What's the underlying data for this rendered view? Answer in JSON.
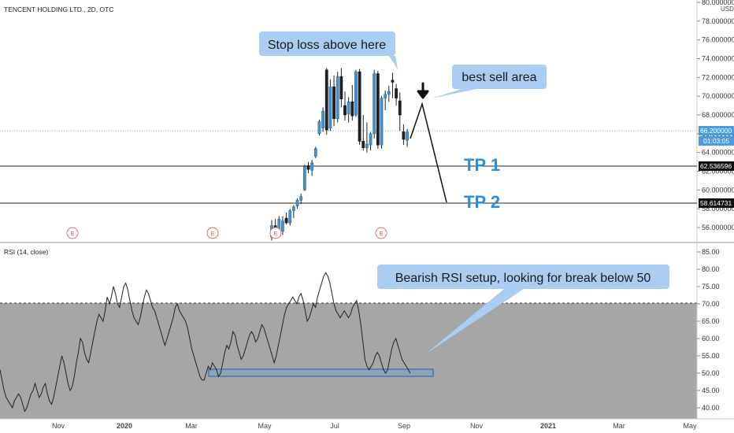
{
  "header": {
    "symbol_title": "TENCENT HOLDING LTD., 2D, OTC"
  },
  "price_axis": {
    "unit": "USD",
    "ticks": [
      "80.000000",
      "78.000000",
      "76.000000",
      "74.000000",
      "72.000000",
      "70.000000",
      "68.000000",
      "66.000000",
      "64.000000",
      "62.000000",
      "60.000000",
      "58.000000",
      "56.000000"
    ],
    "current_price_label": "66.200000",
    "countdown_label": "01:03:05",
    "level_tp1_label": "62.536596",
    "level_tp2_label": "58.614731"
  },
  "rsi_axis": {
    "ticks": [
      "85.00",
      "80.00",
      "75.00",
      "70.00",
      "65.00",
      "60.00",
      "55.00",
      "50.00",
      "45.00",
      "40.00"
    ]
  },
  "time_axis": {
    "ticks": [
      {
        "label": "Nov",
        "bold": false
      },
      {
        "label": "2020",
        "bold": true
      },
      {
        "label": "Mar",
        "bold": false
      },
      {
        "label": "May",
        "bold": false
      },
      {
        "label": "Jul",
        "bold": false
      },
      {
        "label": "Sep",
        "bold": false
      },
      {
        "label": "Nov",
        "bold": false
      },
      {
        "label": "2021",
        "bold": true
      },
      {
        "label": "Mar",
        "bold": false
      },
      {
        "label": "May",
        "bold": false
      }
    ]
  },
  "rsi_pane": {
    "title": "RSI (14, close)",
    "overbought": 70,
    "support_level": 50
  },
  "annotations": {
    "stop_loss": "Stop loss above here",
    "best_sell": "best sell area",
    "tp1": "TP 1",
    "tp2": "TP 2",
    "rsi_note": "Bearish RSI setup, looking for break below 50",
    "earnings_marker": "E"
  },
  "colors": {
    "bull": "#4a90c8",
    "bear": "#222222",
    "callout": "#a9cdf3",
    "tp_text": "#2a8fdb",
    "rsi_band": "#a6a6a6",
    "price_label_blue": "#4a9be0"
  },
  "chart_data": [
    {
      "type": "candlestick",
      "title": "TENCENT HOLDING LTD., 2D, OTC",
      "ylim": [
        54.5,
        80
      ],
      "levels": [
        62.536596,
        58.614731
      ],
      "current_price": 66.2,
      "candles": [
        [
          55.0,
          56.8,
          54.5,
          56.2
        ],
        [
          56.2,
          56.9,
          55.1,
          55.3
        ],
        [
          55.3,
          57.2,
          55.0,
          56.9
        ],
        [
          55.6,
          57.2,
          55.2,
          56.7
        ],
        [
          57.0,
          57.6,
          56.3,
          56.5
        ],
        [
          56.5,
          58.0,
          56.2,
          57.8
        ],
        [
          57.8,
          58.4,
          57.0,
          58.2
        ],
        [
          58.3,
          59.1,
          58.0,
          58.9
        ],
        [
          58.9,
          59.6,
          58.5,
          59.3
        ],
        [
          60.0,
          62.7,
          59.9,
          62.5
        ],
        [
          62.6,
          63.0,
          61.8,
          62.2
        ],
        [
          62.1,
          63.2,
          61.5,
          62.9
        ],
        [
          63.6,
          64.6,
          63.4,
          64.4
        ],
        [
          66.0,
          67.5,
          65.8,
          67.3
        ],
        [
          66.6,
          68.8,
          66.2,
          68.4
        ],
        [
          72.8,
          73.0,
          65.9,
          66.4
        ],
        [
          66.6,
          71.8,
          66.3,
          71.0
        ],
        [
          71.0,
          72.2,
          66.8,
          67.6
        ],
        [
          67.6,
          72.6,
          67.2,
          72.1
        ],
        [
          72.1,
          73.0,
          68.8,
          69.7
        ],
        [
          69.0,
          70.5,
          67.4,
          68.0
        ],
        [
          68.1,
          69.9,
          67.2,
          69.4
        ],
        [
          69.4,
          71.2,
          67.4,
          67.9
        ],
        [
          68.0,
          72.8,
          67.8,
          72.6
        ],
        [
          72.6,
          72.9,
          64.8,
          65.2
        ],
        [
          65.2,
          68.0,
          64.2,
          64.5
        ],
        [
          64.5,
          67.2,
          64.0,
          64.9
        ],
        [
          64.8,
          66.2,
          64.2,
          66.0
        ],
        [
          66.0,
          72.8,
          65.5,
          72.4
        ],
        [
          72.4,
          72.7,
          64.4,
          64.8
        ],
        [
          64.8,
          70.0,
          64.4,
          69.8
        ],
        [
          69.8,
          70.6,
          68.5,
          70.2
        ],
        [
          70.2,
          71.1,
          69.4,
          70.5
        ],
        [
          71.7,
          72.5,
          69.8,
          71.5
        ],
        [
          70.8,
          71.3,
          69.0,
          69.8
        ],
        [
          69.5,
          70.4,
          66.3,
          68.0
        ],
        [
          66.2,
          67.0,
          64.8,
          65.4
        ],
        [
          65.3,
          66.5,
          64.6,
          66.2
        ]
      ],
      "projection": {
        "best_sell_price": 69.2,
        "target_price": 58.7
      },
      "earnings_markers": 4
    },
    {
      "type": "line",
      "title": "RSI (14, close)",
      "ylim": [
        38,
        86
      ],
      "bands": {
        "upper": 70,
        "lower": 30
      },
      "support_zone": [
        49.6,
        51.4
      ],
      "values": [
        51,
        48,
        45,
        43,
        42,
        41,
        40,
        42,
        43,
        44,
        43,
        41,
        39,
        40,
        42,
        44,
        45,
        47,
        45,
        43,
        44,
        46,
        47,
        44,
        42,
        41,
        43,
        46,
        49,
        52,
        55,
        53,
        50,
        47,
        45,
        46,
        49,
        53,
        56,
        60,
        59,
        56,
        54,
        53,
        56,
        59,
        62,
        65,
        67,
        66,
        65,
        68,
        72,
        70,
        72,
        75,
        73,
        70,
        69,
        72,
        75,
        76,
        74,
        71,
        68,
        66,
        65,
        64,
        66,
        69,
        72,
        74,
        73,
        71,
        69,
        68,
        66,
        64,
        62,
        60,
        58,
        60,
        62,
        64,
        66,
        69,
        70,
        68,
        67,
        66,
        65,
        63,
        60,
        57,
        55,
        53,
        51,
        49,
        48,
        48,
        50,
        52,
        51,
        53,
        52,
        51,
        49,
        50,
        53,
        56,
        58,
        57,
        59,
        62,
        61,
        58,
        56,
        54,
        55,
        57,
        59,
        61,
        62,
        61,
        59,
        60,
        62,
        64,
        63,
        61,
        59,
        57,
        55,
        53,
        55,
        58,
        61,
        64,
        67,
        69,
        70,
        71,
        72,
        71,
        70,
        72,
        73,
        71,
        68,
        65,
        66,
        68,
        70,
        69,
        72,
        74,
        76,
        78,
        79,
        78,
        76,
        73,
        70,
        68,
        67,
        66,
        67,
        68,
        67,
        66,
        67,
        69,
        70,
        71,
        68,
        64,
        59,
        54,
        52,
        51,
        52,
        53,
        55,
        56,
        55,
        53,
        51,
        50,
        51,
        54,
        57,
        59,
        60,
        58,
        56,
        54,
        53,
        52,
        51,
        50
      ]
    }
  ]
}
